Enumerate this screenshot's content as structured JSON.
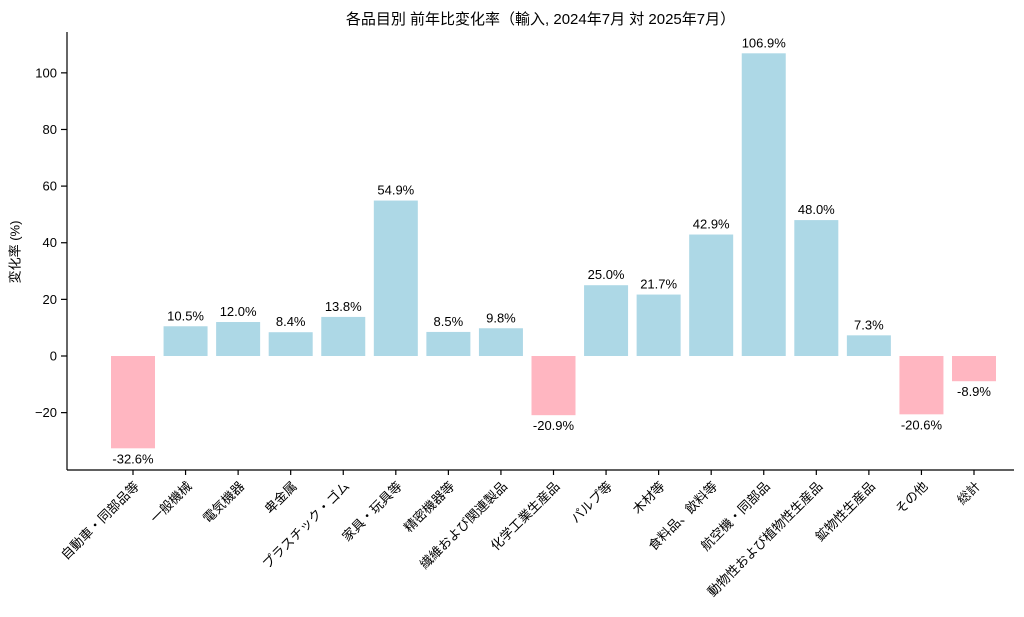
{
  "chart_data": {
    "type": "bar",
    "title": "各品目別 前年比変化率（輸入, 2024年7月 対 2025年7月）",
    "xlabel": "",
    "ylabel": "変化率 (%)",
    "categories": [
      "自動車・同部品等",
      "一般機械",
      "電気機器",
      "卑金属",
      "プラスチック・ゴム",
      "家具・玩具等",
      "精密機器等",
      "繊維および関連製品",
      "化学工業生産品",
      "パルプ等",
      "木材等",
      "食料品、飲料等",
      "航空機・同部品",
      "動物性および植物性生産品",
      "鉱物性生産品",
      "その他",
      "総計"
    ],
    "values": [
      -32.6,
      10.5,
      12.0,
      8.4,
      13.8,
      54.9,
      8.5,
      9.8,
      -20.9,
      25.0,
      21.7,
      42.9,
      106.9,
      48.0,
      7.3,
      -20.6,
      -8.9
    ],
    "value_labels": [
      "-32.6%",
      "10.5%",
      "12.0%",
      "8.4%",
      "13.8%",
      "54.9%",
      "8.5%",
      "9.8%",
      "-20.9%",
      "25.0%",
      "21.7%",
      "42.9%",
      "106.9%",
      "48.0%",
      "7.3%",
      "-20.6%",
      "-8.9%"
    ],
    "ytick_values": [
      -20,
      0,
      20,
      40,
      60,
      80,
      100
    ],
    "ylim": [
      -40.3,
      113.4
    ],
    "grid": false,
    "legend": null,
    "xtick_rotation_deg": 45,
    "colors": {
      "positive_bar": "#ADD8E6",
      "negative_bar": "#FFB6C1",
      "axis": "#000000",
      "text": "#000000"
    }
  }
}
